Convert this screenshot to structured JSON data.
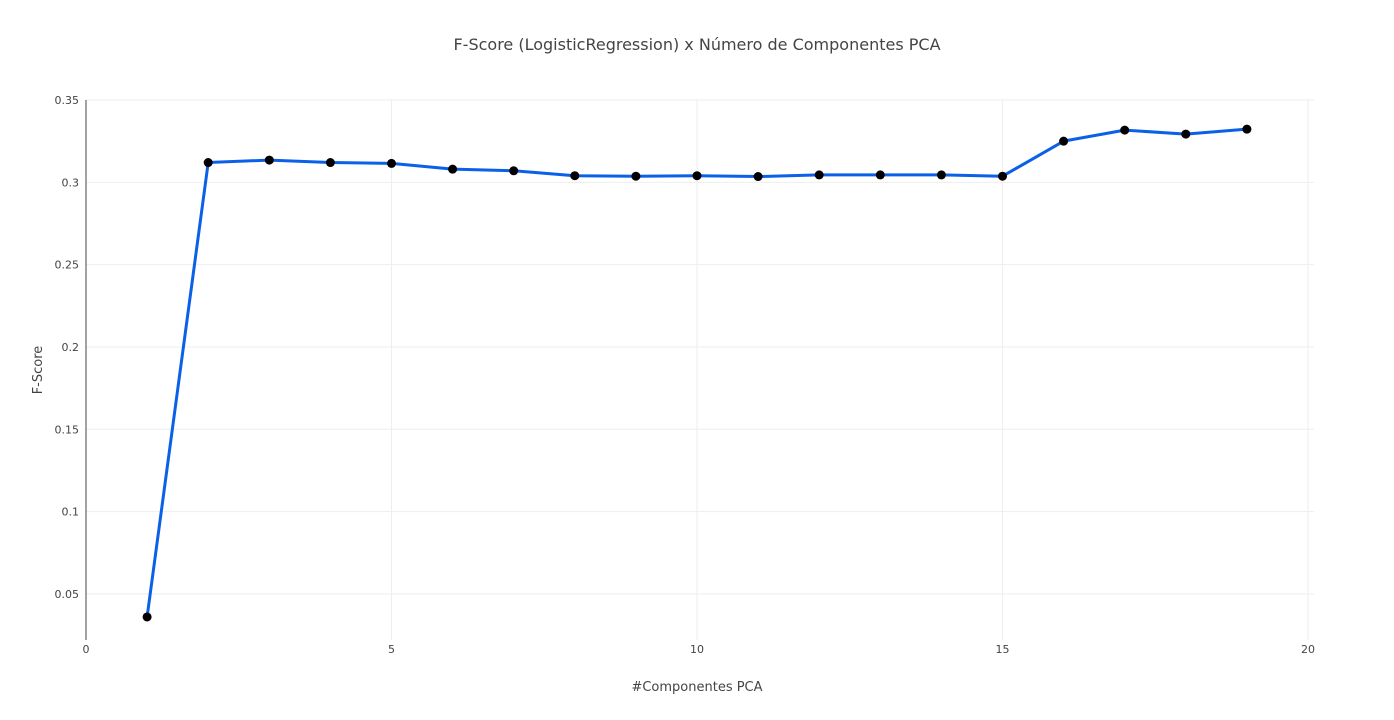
{
  "chart_data": {
    "type": "line",
    "title": "F-Score (LogisticRegression) x Número de Componentes PCA",
    "xlabel": "#Componentes PCA",
    "ylabel": "F-Score",
    "xlim": [
      0,
      20
    ],
    "ylim": [
      0.022,
      0.35
    ],
    "xticks": [
      0,
      5,
      10,
      15,
      20
    ],
    "xtick_labels": [
      "0",
      "5",
      "10",
      "15",
      "20"
    ],
    "yticks": [
      0.05,
      0.1,
      0.15,
      0.2,
      0.25,
      0.3,
      0.35
    ],
    "ytick_labels": [
      "0.05",
      "0.1",
      "0.15",
      "0.2",
      "0.25",
      "0.3",
      "0.35"
    ],
    "grid": true,
    "line_color": "#0b60e8",
    "marker_color": "#000000",
    "series": [
      {
        "x": [
          1,
          2,
          3,
          4,
          5,
          6,
          7,
          8,
          9,
          10,
          11,
          12,
          13,
          14,
          15,
          16,
          17,
          18,
          19
        ],
        "values": [
          0.036,
          0.312,
          0.3135,
          0.312,
          0.3115,
          0.308,
          0.307,
          0.304,
          0.3037,
          0.304,
          0.3035,
          0.3045,
          0.3045,
          0.3045,
          0.3037,
          0.325,
          0.3317,
          0.3293,
          0.3323
        ]
      }
    ]
  }
}
